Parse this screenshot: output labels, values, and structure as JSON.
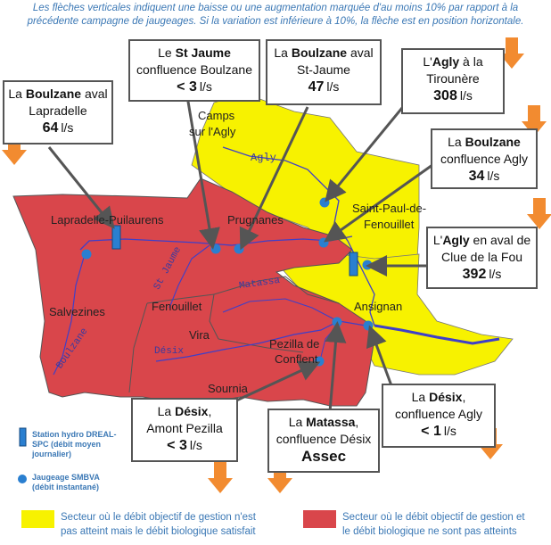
{
  "header": {
    "line1": "Les flèches verticales indiquent une baisse ou une augmentation marquée d'au moins 10% par rapport à la",
    "line2": "précédente campagne de jaugeages. Si la variation est inférieure à 10%, la flèche est en position horizontale."
  },
  "colors": {
    "red_zone": "#d9464b",
    "yellow_zone": "#f7f200",
    "arrow": "#f28b30",
    "river": "#3f3fc8",
    "point": "#2a7fd0",
    "text_blue": "#3b78b5"
  },
  "places": {
    "camps": "Camps",
    "sur_agly": "sur l'Agly",
    "agly_river": "Agly",
    "saint_paul_1": "Saint-Paul-de-",
    "saint_paul_2": "Fenouillet",
    "lapradelle_puilaurens": "Lapradelle-Puilaurens",
    "prugnanes": "Prugnanes",
    "fenouillet": "Fenouillet",
    "salvezines": "Salvezines",
    "matassa": "Matassa",
    "st_jaume": "St Jaume",
    "boulzane": "Boulzane",
    "vira": "Vira",
    "desix": "Désix",
    "ansignan": "Ansignan",
    "pezilla_1": "Pezilla de",
    "pezilla_2": "Conflent",
    "sournia": "Sournia"
  },
  "stations": {
    "boulzane_lapradelle": {
      "pre": "La ",
      "name": "Boulzane",
      "post": " aval",
      "line2": "Lapradelle",
      "value": "64",
      "unit": "l/s",
      "trend": "down"
    },
    "st_jaume": {
      "pre": "Le ",
      "name": "St Jaume",
      "line2": "confluence Boulzane",
      "value": "< 3",
      "unit": "l/s",
      "trend": "none"
    },
    "boulzane_stjaume": {
      "pre": "La ",
      "name": "Boulzane",
      "post": " aval",
      "line2": "St-Jaume",
      "value": "47",
      "unit": "l/s",
      "trend": "none"
    },
    "agly_tirounere": {
      "pre": "L'",
      "name": "Agly",
      "post": " à la",
      "line2": "Tirounère",
      "value": "308",
      "unit": "l/s",
      "trend": "down"
    },
    "boulzane_agly": {
      "pre": "La ",
      "name": "Boulzane",
      "line2": "confluence Agly",
      "value": "34",
      "unit": "l/s",
      "trend": "down"
    },
    "agly_clue": {
      "pre": "L'",
      "name": "Agly",
      "post": " en aval de",
      "line2": "Clue de la Fou",
      "value": "392",
      "unit": "l/s",
      "trend": "none"
    },
    "desix_agly": {
      "pre": "La ",
      "name": "Désix",
      "post": ",",
      "line2": "confluence Agly",
      "value": "< 1",
      "unit": "l/s",
      "trend": "down"
    },
    "matassa_desix": {
      "pre": "La ",
      "name": "Matassa",
      "post": ",",
      "line2": "confluence Désix",
      "value": "Assec",
      "unit": "",
      "trend": "down"
    },
    "desix_pezilla": {
      "pre": "La ",
      "name": "Désix",
      "post": ",",
      "line2": "Amont Pezilla",
      "value": "< 3",
      "unit": "l/s",
      "trend": "down"
    }
  },
  "legend": {
    "station_dreal": "Station hydro DREAL-SPC (débit moyen journalier)",
    "jaugeage": "Jaugeage SMBVA (débit instantané)",
    "yellow_text_1": "Secteur où le débit objectif de gestion n'est",
    "yellow_text_2": "pas atteint mais le débit biologique satisfait",
    "red_text_1": "Secteur où le débit objectif de gestion et",
    "red_text_2": "le débit biologique ne sont pas atteints"
  }
}
